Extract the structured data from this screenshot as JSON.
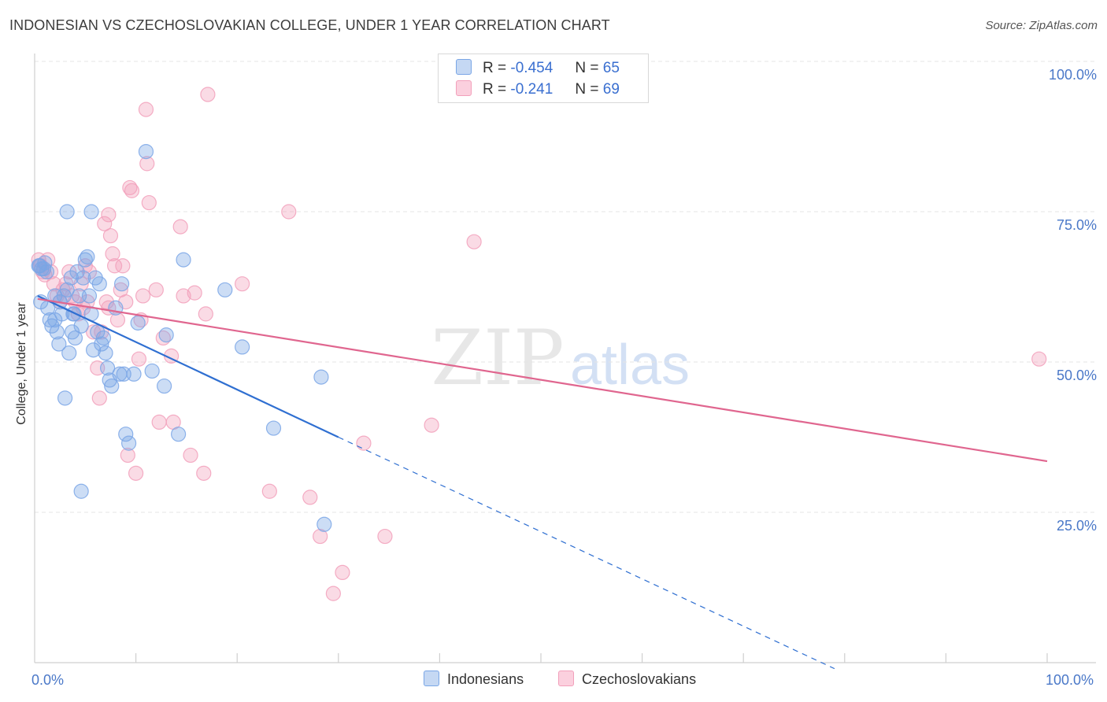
{
  "header": {
    "title": "INDONESIAN VS CZECHOSLOVAKIAN COLLEGE, UNDER 1 YEAR CORRELATION CHART",
    "source": "Source: ZipAtlas.com"
  },
  "watermark": {
    "zip": "ZIP",
    "atlas": "atlas"
  },
  "legend": {
    "r_label": "R =",
    "n_label": "N =",
    "indonesians": {
      "r": "-0.454",
      "n": "65"
    },
    "czechoslovakians": {
      "r": "-0.241",
      "n": "69"
    }
  },
  "bottom_legend": {
    "series_a": "Indonesians",
    "series_b": "Czechoslovakians"
  },
  "chart_data": {
    "type": "scatter",
    "title": "INDONESIAN VS CZECHOSLOVAKIAN COLLEGE, UNDER 1 YEAR CORRELATION CHART",
    "xlabel": "",
    "ylabel": "College, Under 1 year",
    "xlim": [
      0,
      100
    ],
    "ylim": [
      0,
      100
    ],
    "x_tick_labels": [
      "0.0%",
      "100.0%"
    ],
    "y_tick_labels": [
      "100.0%",
      "75.0%",
      "50.0%",
      "25.0%"
    ],
    "y_ticks": [
      100,
      75,
      50,
      25
    ],
    "grid": true,
    "colors": {
      "indonesians": "#7aa6e6",
      "czechoslovakians": "#f2a0bb",
      "blue_line": "#2f6fd1",
      "pink_line": "#e0668f"
    },
    "series": [
      {
        "name": "Indonesians",
        "r": -0.454,
        "n": 65,
        "trend": {
          "x0": 0.3,
          "y0": 61.0,
          "x1": 30,
          "y1": 37.5,
          "dash_x1": 79,
          "dash_y1": -1
        },
        "points": [
          [
            0.5,
            66
          ],
          [
            0.7,
            65.5
          ],
          [
            1.0,
            66.5
          ],
          [
            0.6,
            60
          ],
          [
            1.3,
            59
          ],
          [
            1.5,
            57
          ],
          [
            1.7,
            56
          ],
          [
            2.0,
            61
          ],
          [
            2.2,
            55
          ],
          [
            2.4,
            53
          ],
          [
            2.5,
            60
          ],
          [
            2.9,
            61
          ],
          [
            3.2,
            62
          ],
          [
            3.4,
            51.5
          ],
          [
            3.6,
            64
          ],
          [
            3.7,
            55
          ],
          [
            3.8,
            58
          ],
          [
            4.0,
            54
          ],
          [
            4.2,
            65
          ],
          [
            4.4,
            61
          ],
          [
            4.6,
            56
          ],
          [
            4.8,
            64
          ],
          [
            5.0,
            67
          ],
          [
            5.2,
            67.5
          ],
          [
            5.4,
            61
          ],
          [
            5.6,
            58
          ],
          [
            5.8,
            52
          ],
          [
            6.0,
            64
          ],
          [
            6.2,
            55
          ],
          [
            6.4,
            63
          ],
          [
            6.6,
            53
          ],
          [
            6.8,
            54
          ],
          [
            7.0,
            51.5
          ],
          [
            7.2,
            49
          ],
          [
            7.4,
            47
          ],
          [
            7.6,
            46
          ],
          [
            8.0,
            59
          ],
          [
            8.4,
            48
          ],
          [
            8.6,
            63
          ],
          [
            8.8,
            48
          ],
          [
            9.0,
            38
          ],
          [
            9.3,
            36.5
          ],
          [
            9.8,
            48
          ],
          [
            10.2,
            56.5
          ],
          [
            11.0,
            85
          ],
          [
            11.6,
            48.5
          ],
          [
            12.8,
            46
          ],
          [
            13.0,
            54.5
          ],
          [
            14.2,
            38
          ],
          [
            14.7,
            67
          ],
          [
            18.8,
            62
          ],
          [
            20.5,
            52.5
          ],
          [
            23.6,
            39
          ],
          [
            28.3,
            47.5
          ],
          [
            28.6,
            23
          ],
          [
            3.0,
            44
          ],
          [
            3.2,
            75
          ],
          [
            4.6,
            28.5
          ],
          [
            5.6,
            75
          ],
          [
            2.0,
            57
          ],
          [
            1.2,
            65
          ],
          [
            0.4,
            66
          ],
          [
            0.9,
            65.5
          ],
          [
            3.9,
            58
          ],
          [
            2.7,
            58
          ]
        ]
      },
      {
        "name": "Czechoslovakians",
        "r": -0.241,
        "n": 69,
        "trend": {
          "x0": 0.3,
          "y0": 60.5,
          "x1": 100,
          "y1": 33.5
        },
        "points": [
          [
            0.4,
            67
          ],
          [
            0.6,
            66
          ],
          [
            0.8,
            65
          ],
          [
            1.0,
            64.5
          ],
          [
            1.3,
            67
          ],
          [
            1.6,
            65
          ],
          [
            1.9,
            63
          ],
          [
            2.2,
            61
          ],
          [
            2.5,
            60
          ],
          [
            2.8,
            62
          ],
          [
            3.1,
            63
          ],
          [
            3.4,
            65
          ],
          [
            3.7,
            61
          ],
          [
            4.0,
            60
          ],
          [
            4.3,
            58
          ],
          [
            4.6,
            63
          ],
          [
            4.8,
            59
          ],
          [
            5.0,
            66
          ],
          [
            5.4,
            65
          ],
          [
            5.8,
            55
          ],
          [
            6.2,
            49
          ],
          [
            6.4,
            44
          ],
          [
            6.6,
            55
          ],
          [
            6.9,
            73
          ],
          [
            7.1,
            60
          ],
          [
            7.3,
            74.5
          ],
          [
            7.5,
            71
          ],
          [
            7.7,
            68
          ],
          [
            7.9,
            66
          ],
          [
            8.2,
            57
          ],
          [
            8.5,
            62
          ],
          [
            8.7,
            66
          ],
          [
            9.0,
            60
          ],
          [
            9.2,
            34.5
          ],
          [
            9.4,
            79
          ],
          [
            9.6,
            78.5
          ],
          [
            10.0,
            31.5
          ],
          [
            10.3,
            50.5
          ],
          [
            10.5,
            57
          ],
          [
            10.7,
            61
          ],
          [
            11.0,
            92
          ],
          [
            11.1,
            83
          ],
          [
            11.3,
            76.5
          ],
          [
            12.0,
            62
          ],
          [
            12.3,
            40
          ],
          [
            12.7,
            54
          ],
          [
            13.5,
            51
          ],
          [
            13.7,
            40
          ],
          [
            14.4,
            72.5
          ],
          [
            14.7,
            61
          ],
          [
            15.4,
            34.5
          ],
          [
            15.8,
            61.5
          ],
          [
            16.7,
            31.5
          ],
          [
            16.9,
            58
          ],
          [
            17.1,
            94.5
          ],
          [
            20.5,
            63
          ],
          [
            23.2,
            28.5
          ],
          [
            25.1,
            75
          ],
          [
            27.2,
            27.5
          ],
          [
            28.2,
            21
          ],
          [
            29.5,
            11.5
          ],
          [
            30.4,
            15
          ],
          [
            32.5,
            36.5
          ],
          [
            34.6,
            21
          ],
          [
            39.2,
            39.5
          ],
          [
            43.4,
            70
          ],
          [
            99.2,
            50.5
          ],
          [
            7.3,
            59
          ],
          [
            5.2,
            60
          ]
        ]
      }
    ]
  }
}
